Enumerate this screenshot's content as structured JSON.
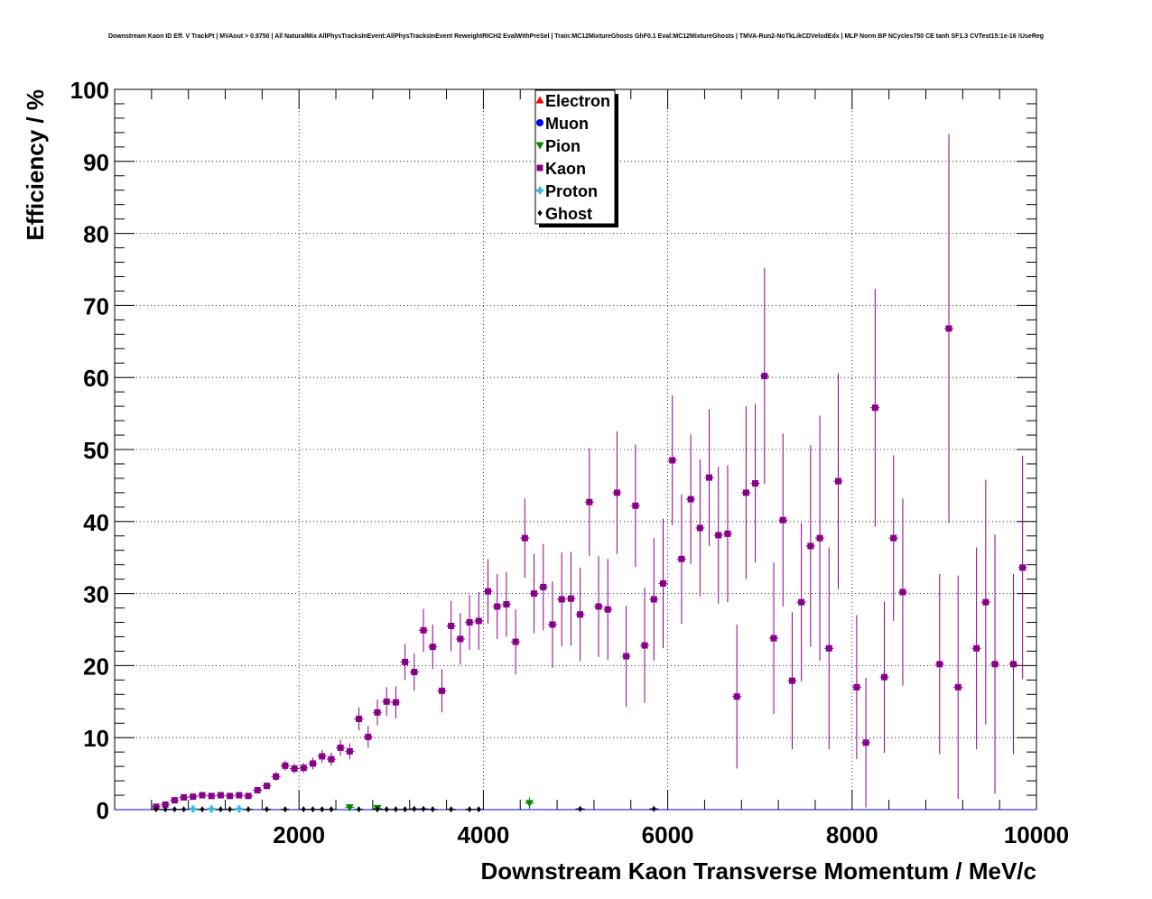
{
  "chart_data": {
    "type": "scatter",
    "title": "Downstream Kaon ID Eff. V TrackPt | MVAout > 0.9750 | All NaturalMix AllPhysTracksInEvent:AllPhysTracksInEvent ReweightRICH2 EvalWithPreSel | Train:MC12MixtureGhosts GhF0.1 Eval:MC12MixtureGhosts | TMVA-Run2-NoTkLikCDVelodEdx | MLP Norm BP NCycles750 CE tanh SF1.3 CVTest15:1e-16 !UseReg",
    "xlabel": "Downstream Kaon Transverse Momentum / MeV/c",
    "ylabel": "Efficiency / %",
    "xlim": [
      0,
      10000
    ],
    "ylim": [
      0,
      100
    ],
    "xticks": [
      "2000",
      "4000",
      "6000",
      "8000",
      "10000"
    ],
    "yticks": [
      "0",
      "10",
      "20",
      "30",
      "40",
      "50",
      "60",
      "70",
      "80",
      "90",
      "100"
    ],
    "grid": true,
    "legend": "top-center",
    "series": [
      {
        "name": "Electron",
        "color": "#ff0000",
        "marker": "triangle-up",
        "points": []
      },
      {
        "name": "Muon",
        "color": "#0000ff",
        "marker": "circle",
        "points": []
      },
      {
        "name": "Pion",
        "color": "#008800",
        "marker": "triangle-down",
        "points": [
          [
            2550,
            0.3,
            0.5
          ],
          [
            2850,
            0.2,
            0.4
          ],
          [
            4500,
            0.9,
            0.8
          ]
        ]
      },
      {
        "name": "Kaon",
        "color": "#880088",
        "marker": "square",
        "points": [
          [
            450,
            0.4,
            0.3
          ],
          [
            550,
            0.7,
            0.3
          ],
          [
            650,
            1.3,
            0.3
          ],
          [
            750,
            1.7,
            0.3
          ],
          [
            850,
            1.8,
            0.3
          ],
          [
            950,
            2.0,
            0.3
          ],
          [
            1050,
            1.9,
            0.3
          ],
          [
            1150,
            2.0,
            0.3
          ],
          [
            1250,
            1.9,
            0.3
          ],
          [
            1350,
            2.0,
            0.3
          ],
          [
            1450,
            1.9,
            0.3
          ],
          [
            1550,
            2.7,
            0.4
          ],
          [
            1650,
            3.3,
            0.5
          ],
          [
            1750,
            4.6,
            0.6
          ],
          [
            1850,
            6.1,
            0.7
          ],
          [
            1950,
            5.7,
            0.7
          ],
          [
            2050,
            5.8,
            0.7
          ],
          [
            2150,
            6.4,
            0.8
          ],
          [
            2250,
            7.4,
            0.9
          ],
          [
            2350,
            7.0,
            0.9
          ],
          [
            2450,
            8.6,
            1.1
          ],
          [
            2550,
            8.1,
            1.1
          ],
          [
            2650,
            12.6,
            1.6
          ],
          [
            2750,
            10.1,
            1.5
          ],
          [
            2850,
            13.5,
            1.8
          ],
          [
            2950,
            15.0,
            2.0
          ],
          [
            3050,
            14.9,
            2.2
          ],
          [
            3150,
            20.5,
            2.5
          ],
          [
            3250,
            19.1,
            2.6
          ],
          [
            3350,
            24.9,
            3.0
          ],
          [
            3450,
            22.6,
            3.1
          ],
          [
            3550,
            16.5,
            3.0
          ],
          [
            3650,
            25.5,
            3.5
          ],
          [
            3750,
            23.7,
            3.6
          ],
          [
            3850,
            26.0,
            3.8
          ],
          [
            3950,
            26.2,
            4.0
          ],
          [
            4050,
            30.3,
            4.5
          ],
          [
            4150,
            28.2,
            4.5
          ],
          [
            4250,
            28.5,
            4.5
          ],
          [
            4350,
            23.3,
            4.5
          ],
          [
            4450,
            37.7,
            5.5
          ],
          [
            4550,
            30.0,
            5.5
          ],
          [
            4650,
            30.9,
            6.0
          ],
          [
            4750,
            25.7,
            6.0
          ],
          [
            4850,
            29.2,
            6.5
          ],
          [
            4950,
            29.3,
            6.5
          ],
          [
            5050,
            27.1,
            6.5
          ],
          [
            5150,
            42.7,
            7.5
          ],
          [
            5250,
            28.2,
            7.0
          ],
          [
            5350,
            27.8,
            7.0
          ],
          [
            5450,
            44.0,
            8.5
          ],
          [
            5550,
            21.3,
            7.0
          ],
          [
            5650,
            42.2,
            8.5
          ],
          [
            5750,
            22.8,
            8.0
          ],
          [
            5850,
            29.2,
            8.5
          ],
          [
            5950,
            31.4,
            9.0
          ],
          [
            6050,
            48.5,
            9.0
          ],
          [
            6150,
            34.8,
            9.0
          ],
          [
            6250,
            43.1,
            9.0
          ],
          [
            6350,
            39.1,
            9.5
          ],
          [
            6450,
            46.1,
            9.5
          ],
          [
            6550,
            38.1,
            9.5
          ],
          [
            6650,
            38.3,
            9.5
          ],
          [
            6750,
            15.7,
            10.0
          ],
          [
            6850,
            44.0,
            12.0
          ],
          [
            6950,
            45.3,
            11.0
          ],
          [
            7050,
            60.2,
            15.0
          ],
          [
            7150,
            23.8,
            10.5
          ],
          [
            7250,
            40.2,
            12.0
          ],
          [
            7350,
            17.9,
            9.5
          ],
          [
            7450,
            28.8,
            11.0
          ],
          [
            7550,
            36.6,
            14.0
          ],
          [
            7650,
            37.7,
            17.0
          ],
          [
            7750,
            22.4,
            14.0
          ],
          [
            7850,
            45.6,
            15.0
          ],
          [
            8050,
            17.0,
            10.0
          ],
          [
            8150,
            9.3,
            9.0
          ],
          [
            8250,
            55.8,
            16.5
          ],
          [
            8350,
            18.4,
            10.5
          ],
          [
            8450,
            37.7,
            11.5
          ],
          [
            8550,
            30.2,
            13.0
          ],
          [
            8950,
            20.2,
            12.5
          ],
          [
            9050,
            66.8,
            27.0
          ],
          [
            9150,
            17.0,
            15.5
          ],
          [
            9350,
            22.4,
            14.0
          ],
          [
            9450,
            28.8,
            17.0
          ],
          [
            9550,
            20.2,
            18.0
          ],
          [
            9750,
            20.2,
            12.5
          ],
          [
            9850,
            33.6,
            15.5
          ]
        ]
      },
      {
        "name": "Proton",
        "color": "#33bbdd",
        "marker": "cross",
        "points": [
          [
            850,
            0.1,
            0.1
          ],
          [
            1050,
            0.1,
            0.1
          ],
          [
            1350,
            0.1,
            0.1
          ]
        ]
      },
      {
        "name": "Ghost",
        "color": "#000000",
        "marker": "diamond",
        "points": [
          [
            450,
            0.05,
            0.05
          ],
          [
            550,
            0.05,
            0.05
          ],
          [
            650,
            0.05,
            0.05
          ],
          [
            750,
            0.05,
            0.05
          ],
          [
            950,
            0.05,
            0.05
          ],
          [
            1150,
            0.05,
            0.05
          ],
          [
            1250,
            0.05,
            0.05
          ],
          [
            1450,
            0.05,
            0.05
          ],
          [
            1650,
            0.05,
            0.05
          ],
          [
            1850,
            0.05,
            0.05
          ],
          [
            2050,
            0.05,
            0.05
          ],
          [
            2150,
            0.05,
            0.05
          ],
          [
            2250,
            0.05,
            0.05
          ],
          [
            2350,
            0.05,
            0.05
          ],
          [
            2650,
            0.05,
            0.05
          ],
          [
            2850,
            0.05,
            0.05
          ],
          [
            2950,
            0.05,
            0.05
          ],
          [
            3050,
            0.05,
            0.05
          ],
          [
            3150,
            0.05,
            0.05
          ],
          [
            3250,
            0.1,
            0.1
          ],
          [
            3350,
            0.1,
            0.1
          ],
          [
            3450,
            0.05,
            0.05
          ],
          [
            3650,
            0.05,
            0.05
          ],
          [
            3850,
            0.05,
            0.05
          ],
          [
            3950,
            0.05,
            0.05
          ],
          [
            5050,
            0.1,
            0.1
          ],
          [
            5850,
            0.1,
            0.1
          ]
        ]
      }
    ]
  }
}
